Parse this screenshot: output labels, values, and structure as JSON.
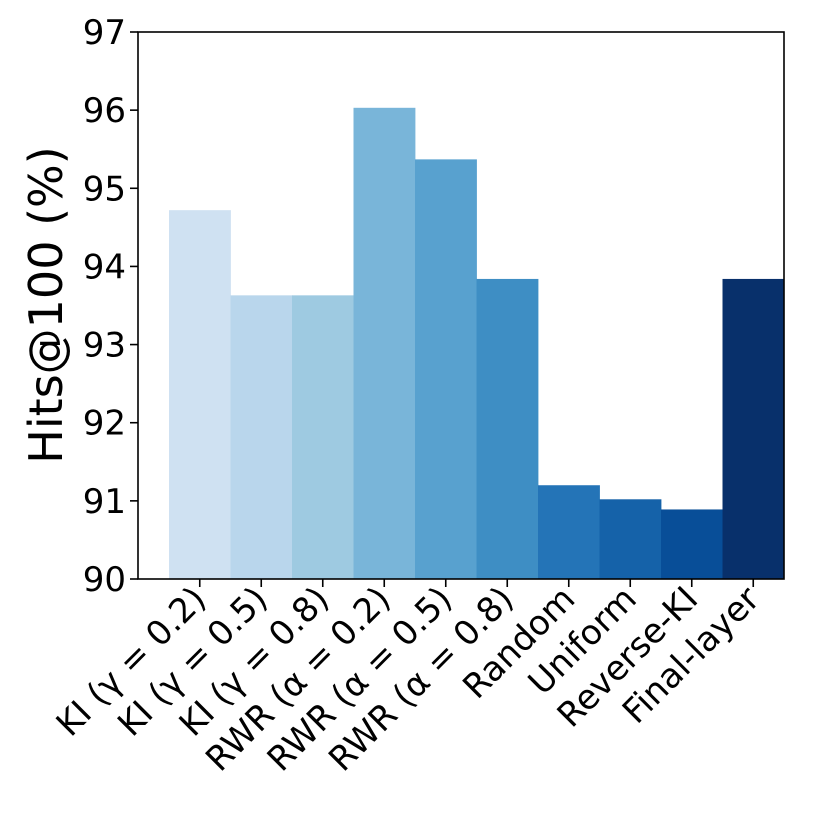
{
  "chart_data": {
    "type": "bar",
    "title": "",
    "xlabel": "",
    "ylabel": "Hits@100 (%)",
    "ylim": [
      90,
      97
    ],
    "yticks": [
      90,
      91,
      92,
      93,
      94,
      95,
      96,
      97
    ],
    "grid": false,
    "legend": "none",
    "categories": [
      "KI (γ = 0.2)",
      "KI (γ = 0.5)",
      "KI (γ = 0.8)",
      "RWR (α = 0.2)",
      "RWR (α = 0.5)",
      "RWR (α = 0.8)",
      "Random",
      "Uniform",
      "Reverse-KI",
      "Final-layer"
    ],
    "values": [
      94.72,
      93.63,
      93.63,
      96.03,
      95.37,
      93.84,
      91.2,
      91.02,
      90.89,
      93.84
    ],
    "colors": [
      "#cfe1f2",
      "#b9d6ec",
      "#9ecae1",
      "#79b5d9",
      "#58a1cf",
      "#3e8ec4",
      "#2474b7",
      "#1562a9",
      "#084e98",
      "#08306b"
    ]
  }
}
